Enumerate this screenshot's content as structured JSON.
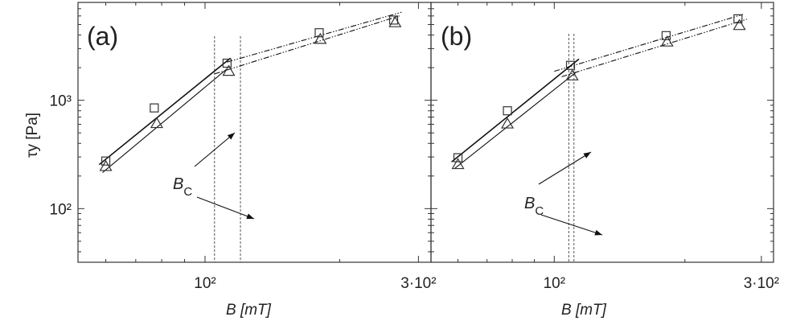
{
  "chart_data": [
    {
      "type": "scatter",
      "panel_label": "(a)",
      "xscale": "log",
      "yscale": "log",
      "xlim": [
        52,
        320
      ],
      "ylim": [
        32,
        8000
      ],
      "xlabel": "B [mT]",
      "ylabel": "τy [Pa]",
      "xticks": [
        {
          "value": 100,
          "label": "10²"
        },
        {
          "value": 300,
          "label": "3·10²"
        }
      ],
      "yticks": [
        {
          "value": 100,
          "label": "10²"
        },
        {
          "value": 1000,
          "label": "10³"
        }
      ],
      "series": [
        {
          "marker": "square",
          "points": [
            {
              "x": 60,
              "y": 275
            },
            {
              "x": 77,
              "y": 850
            },
            {
              "x": 112,
              "y": 2200
            },
            {
              "x": 180,
              "y": 4200
            },
            {
              "x": 264,
              "y": 5500
            }
          ],
          "fits": [
            {
              "style": "solid",
              "x": [
                58,
                114
              ],
              "y": [
                255,
                2450
              ]
            },
            {
              "style": "dashdotdot",
              "x": [
                112,
                275
              ],
              "y": [
                2250,
                6500
              ]
            }
          ]
        },
        {
          "marker": "triangle",
          "points": [
            {
              "x": 60,
              "y": 245
            },
            {
              "x": 78,
              "y": 610
            },
            {
              "x": 113,
              "y": 1850
            },
            {
              "x": 181,
              "y": 3650
            },
            {
              "x": 266,
              "y": 5200
            }
          ],
          "fits": [
            {
              "style": "solid",
              "x": [
                59,
                112
              ],
              "y": [
                215,
                1950
              ]
            },
            {
              "style": "dashdotdot",
              "x": [
                105,
                272
              ],
              "y": [
                1750,
                6000
              ]
            }
          ]
        }
      ],
      "critical_field": {
        "label": "B",
        "subscript": "C",
        "lines_x": [
          105,
          120
        ]
      }
    },
    {
      "type": "scatter",
      "panel_label": "(b)",
      "xscale": "log",
      "yscale": "log",
      "xlim": [
        52,
        320
      ],
      "ylim": [
        32,
        8000
      ],
      "xlabel": "B [mT]",
      "xticks": [
        {
          "value": 100,
          "label": "10²"
        },
        {
          "value": 300,
          "label": "3·10²"
        }
      ],
      "yticks": [
        {
          "value": 100,
          "label": "10²"
        },
        {
          "value": 1000,
          "label": "10³"
        }
      ],
      "series": [
        {
          "marker": "square",
          "points": [
            {
              "x": 60,
              "y": 295
            },
            {
              "x": 78,
              "y": 800
            },
            {
              "x": 109,
              "y": 2100
            },
            {
              "x": 181,
              "y": 3950
            },
            {
              "x": 265,
              "y": 5650
            }
          ],
          "fits": [
            {
              "style": "solid",
              "x": [
                58,
                114
              ],
              "y": [
                270,
                2400
              ]
            },
            {
              "style": "dashdotdot",
              "x": [
                100,
                272
              ],
              "y": [
                1850,
                6200
              ]
            }
          ]
        },
        {
          "marker": "triangle",
          "points": [
            {
              "x": 60,
              "y": 255
            },
            {
              "x": 78,
              "y": 605
            },
            {
              "x": 110,
              "y": 1680
            },
            {
              "x": 182,
              "y": 3450
            },
            {
              "x": 267,
              "y": 4900
            }
          ],
          "fits": [
            {
              "style": "solid",
              "x": [
                59,
                112
              ],
              "y": [
                235,
                1800
              ]
            },
            {
              "style": "dashdotdot",
              "x": [
                104,
                278
              ],
              "y": [
                1650,
                5600
              ]
            }
          ]
        }
      ],
      "critical_field": {
        "label": "B",
        "subscript": "C",
        "lines_x": [
          108,
          111
        ]
      }
    }
  ]
}
